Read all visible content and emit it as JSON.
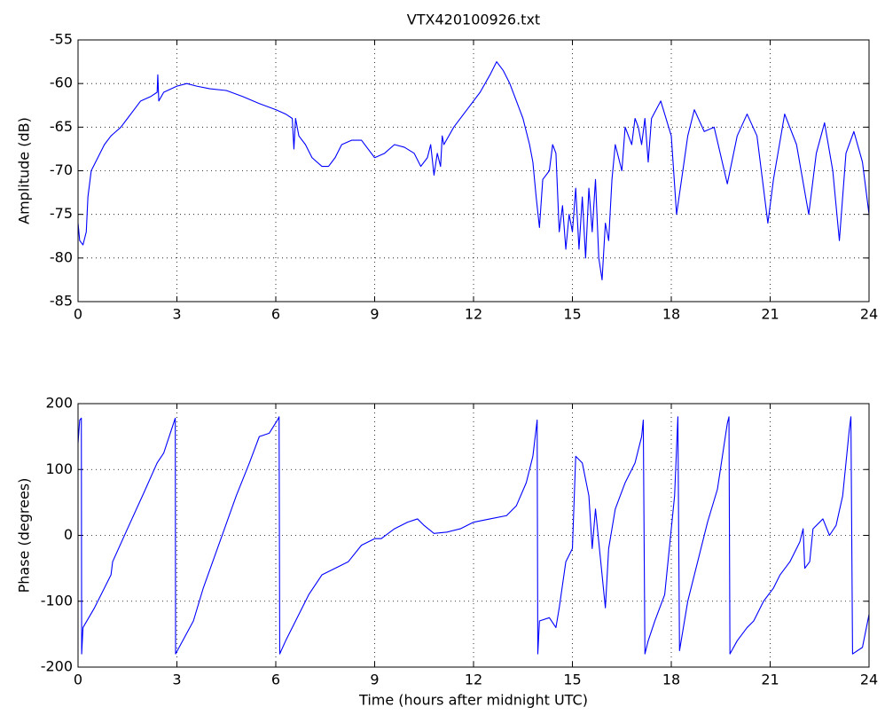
{
  "chart_data": [
    {
      "type": "line",
      "title": "VTX420100926.txt",
      "ylabel": "Amplitude (dB)",
      "color": "#0000ff",
      "grid": true,
      "xlim": [
        0,
        24
      ],
      "xticks": [
        0,
        3,
        6,
        9,
        12,
        15,
        18,
        21,
        24
      ],
      "ylim": [
        -85,
        -55
      ],
      "yticks": [
        -85,
        -80,
        -75,
        -70,
        -65,
        -60,
        -55
      ],
      "x": [
        0,
        0.05,
        0.15,
        0.25,
        0.3,
        0.4,
        0.6,
        0.8,
        1.0,
        1.3,
        1.5,
        1.7,
        1.9,
        2.2,
        2.4,
        2.42,
        2.45,
        2.6,
        3.0,
        3.3,
        3.6,
        4.0,
        4.5,
        5.0,
        5.5,
        6.0,
        6.3,
        6.5,
        6.55,
        6.6,
        6.7,
        6.9,
        7.1,
        7.4,
        7.6,
        7.8,
        8.0,
        8.3,
        8.6,
        8.8,
        9.0,
        9.3,
        9.6,
        9.9,
        10.2,
        10.4,
        10.6,
        10.7,
        10.8,
        10.9,
        11.0,
        11.05,
        11.1,
        11.4,
        11.8,
        12.2,
        12.5,
        12.7,
        12.9,
        13.1,
        13.3,
        13.5,
        13.7,
        13.8,
        13.9,
        14.0,
        14.1,
        14.3,
        14.4,
        14.5,
        14.6,
        14.7,
        14.8,
        14.9,
        15.0,
        15.1,
        15.2,
        15.3,
        15.4,
        15.5,
        15.6,
        15.7,
        15.8,
        15.9,
        16.0,
        16.1,
        16.2,
        16.3,
        16.5,
        16.6,
        16.8,
        16.9,
        17.0,
        17.1,
        17.2,
        17.3,
        17.4,
        17.68,
        18.0,
        18.16,
        18.35,
        18.5,
        18.7,
        19.0,
        19.3,
        19.7,
        20.0,
        20.3,
        20.6,
        20.93,
        21.1,
        21.44,
        21.8,
        22.17,
        22.4,
        22.65,
        22.9,
        23.1,
        23.3,
        23.54,
        23.8,
        24
      ],
      "values": [
        -76,
        -78,
        -78.5,
        -77,
        -73,
        -70,
        -68.5,
        -67,
        -66,
        -65,
        -64,
        -63,
        -62,
        -61.5,
        -61,
        -59,
        -62,
        -61,
        -60.3,
        -60,
        -60.3,
        -60.6,
        -60.8,
        -61.5,
        -62.3,
        -63,
        -63.5,
        -64,
        -67.5,
        -64,
        -66,
        -67,
        -68.5,
        -69.5,
        -69.5,
        -68.5,
        -67,
        -66.5,
        -66.5,
        -67.5,
        -68.5,
        -68,
        -67,
        -67.3,
        -68,
        -69.5,
        -68.5,
        -67,
        -70.5,
        -68,
        -69.5,
        -66,
        -67,
        -65,
        -63,
        -61,
        -59,
        -57.5,
        -58.5,
        -60,
        -62,
        -64,
        -67,
        -69,
        -73,
        -76.5,
        -71,
        -70,
        -67,
        -68,
        -77,
        -74,
        -79,
        -75,
        -77,
        -72,
        -79,
        -73,
        -80,
        -72,
        -77,
        -71,
        -80,
        -82.5,
        -76,
        -78,
        -71,
        -67,
        -70,
        -65,
        -67,
        -64,
        -65,
        -67,
        -64,
        -69,
        -64,
        -62,
        -66,
        -75,
        -70,
        -66,
        -63,
        -65.5,
        -65,
        -71.5,
        -66,
        -63.5,
        -66,
        -76,
        -71,
        -63.5,
        -67,
        -75,
        -68,
        -64.5,
        -70,
        -78,
        -68,
        -65.5,
        -69,
        -75
      ]
    },
    {
      "type": "line",
      "ylabel": "Phase (degrees)",
      "xlabel": "Time (hours after midnight UTC)",
      "color": "#0000ff",
      "grid": true,
      "xlim": [
        0,
        24
      ],
      "xticks": [
        0,
        3,
        6,
        9,
        12,
        15,
        18,
        21,
        24
      ],
      "ylim": [
        -200,
        200
      ],
      "yticks": [
        -200,
        -100,
        0,
        100,
        200
      ],
      "x": [
        0,
        0.05,
        0.1,
        0.11,
        0.15,
        0.5,
        1.0,
        1.05,
        1.5,
        2.0,
        2.4,
        2.6,
        2.95,
        2.96,
        3.5,
        3.8,
        4.3,
        4.8,
        5.2,
        5.5,
        5.8,
        6.05,
        6.1,
        6.12,
        6.3,
        6.7,
        7.0,
        7.4,
        7.8,
        8.2,
        8.6,
        9.0,
        9.2,
        9.6,
        10.0,
        10.3,
        10.5,
        10.8,
        11.2,
        11.6,
        12.0,
        12.5,
        13.0,
        13.3,
        13.6,
        13.8,
        13.93,
        13.95,
        14.0,
        14.3,
        14.5,
        14.6,
        14.8,
        15.0,
        15.1,
        15.3,
        15.5,
        15.6,
        15.7,
        15.9,
        16.0,
        16.1,
        16.3,
        16.6,
        16.9,
        17.1,
        17.15,
        17.2,
        17.3,
        17.5,
        17.8,
        18.1,
        18.2,
        18.25,
        18.5,
        18.8,
        19.1,
        19.4,
        19.7,
        19.75,
        19.78,
        20.0,
        20.3,
        20.5,
        20.8,
        21.1,
        21.3,
        21.6,
        21.9,
        22.0,
        22.05,
        22.2,
        22.3,
        22.6,
        22.8,
        23.0,
        23.2,
        23.4,
        23.45,
        23.5,
        23.8,
        24
      ],
      "values": [
        140,
        175,
        178,
        -180,
        -140,
        -110,
        -60,
        -40,
        10,
        65,
        110,
        125,
        178,
        -180,
        -130,
        -80,
        -10,
        60,
        110,
        150,
        155,
        175,
        180,
        -180,
        -160,
        -120,
        -90,
        -60,
        -50,
        -40,
        -15,
        -5,
        -5,
        10,
        20,
        25,
        15,
        3,
        5,
        10,
        20,
        25,
        30,
        45,
        80,
        120,
        175,
        -180,
        -130,
        -125,
        -140,
        -110,
        -40,
        -20,
        120,
        110,
        60,
        -20,
        40,
        -60,
        -110,
        -20,
        40,
        80,
        110,
        150,
        175,
        -180,
        -160,
        -130,
        -90,
        60,
        180,
        -175,
        -100,
        -40,
        20,
        70,
        170,
        180,
        -180,
        -160,
        -140,
        -130,
        -100,
        -80,
        -60,
        -40,
        -10,
        10,
        -50,
        -40,
        10,
        25,
        0,
        15,
        60,
        160,
        180,
        -180,
        -170,
        -120
      ]
    }
  ]
}
